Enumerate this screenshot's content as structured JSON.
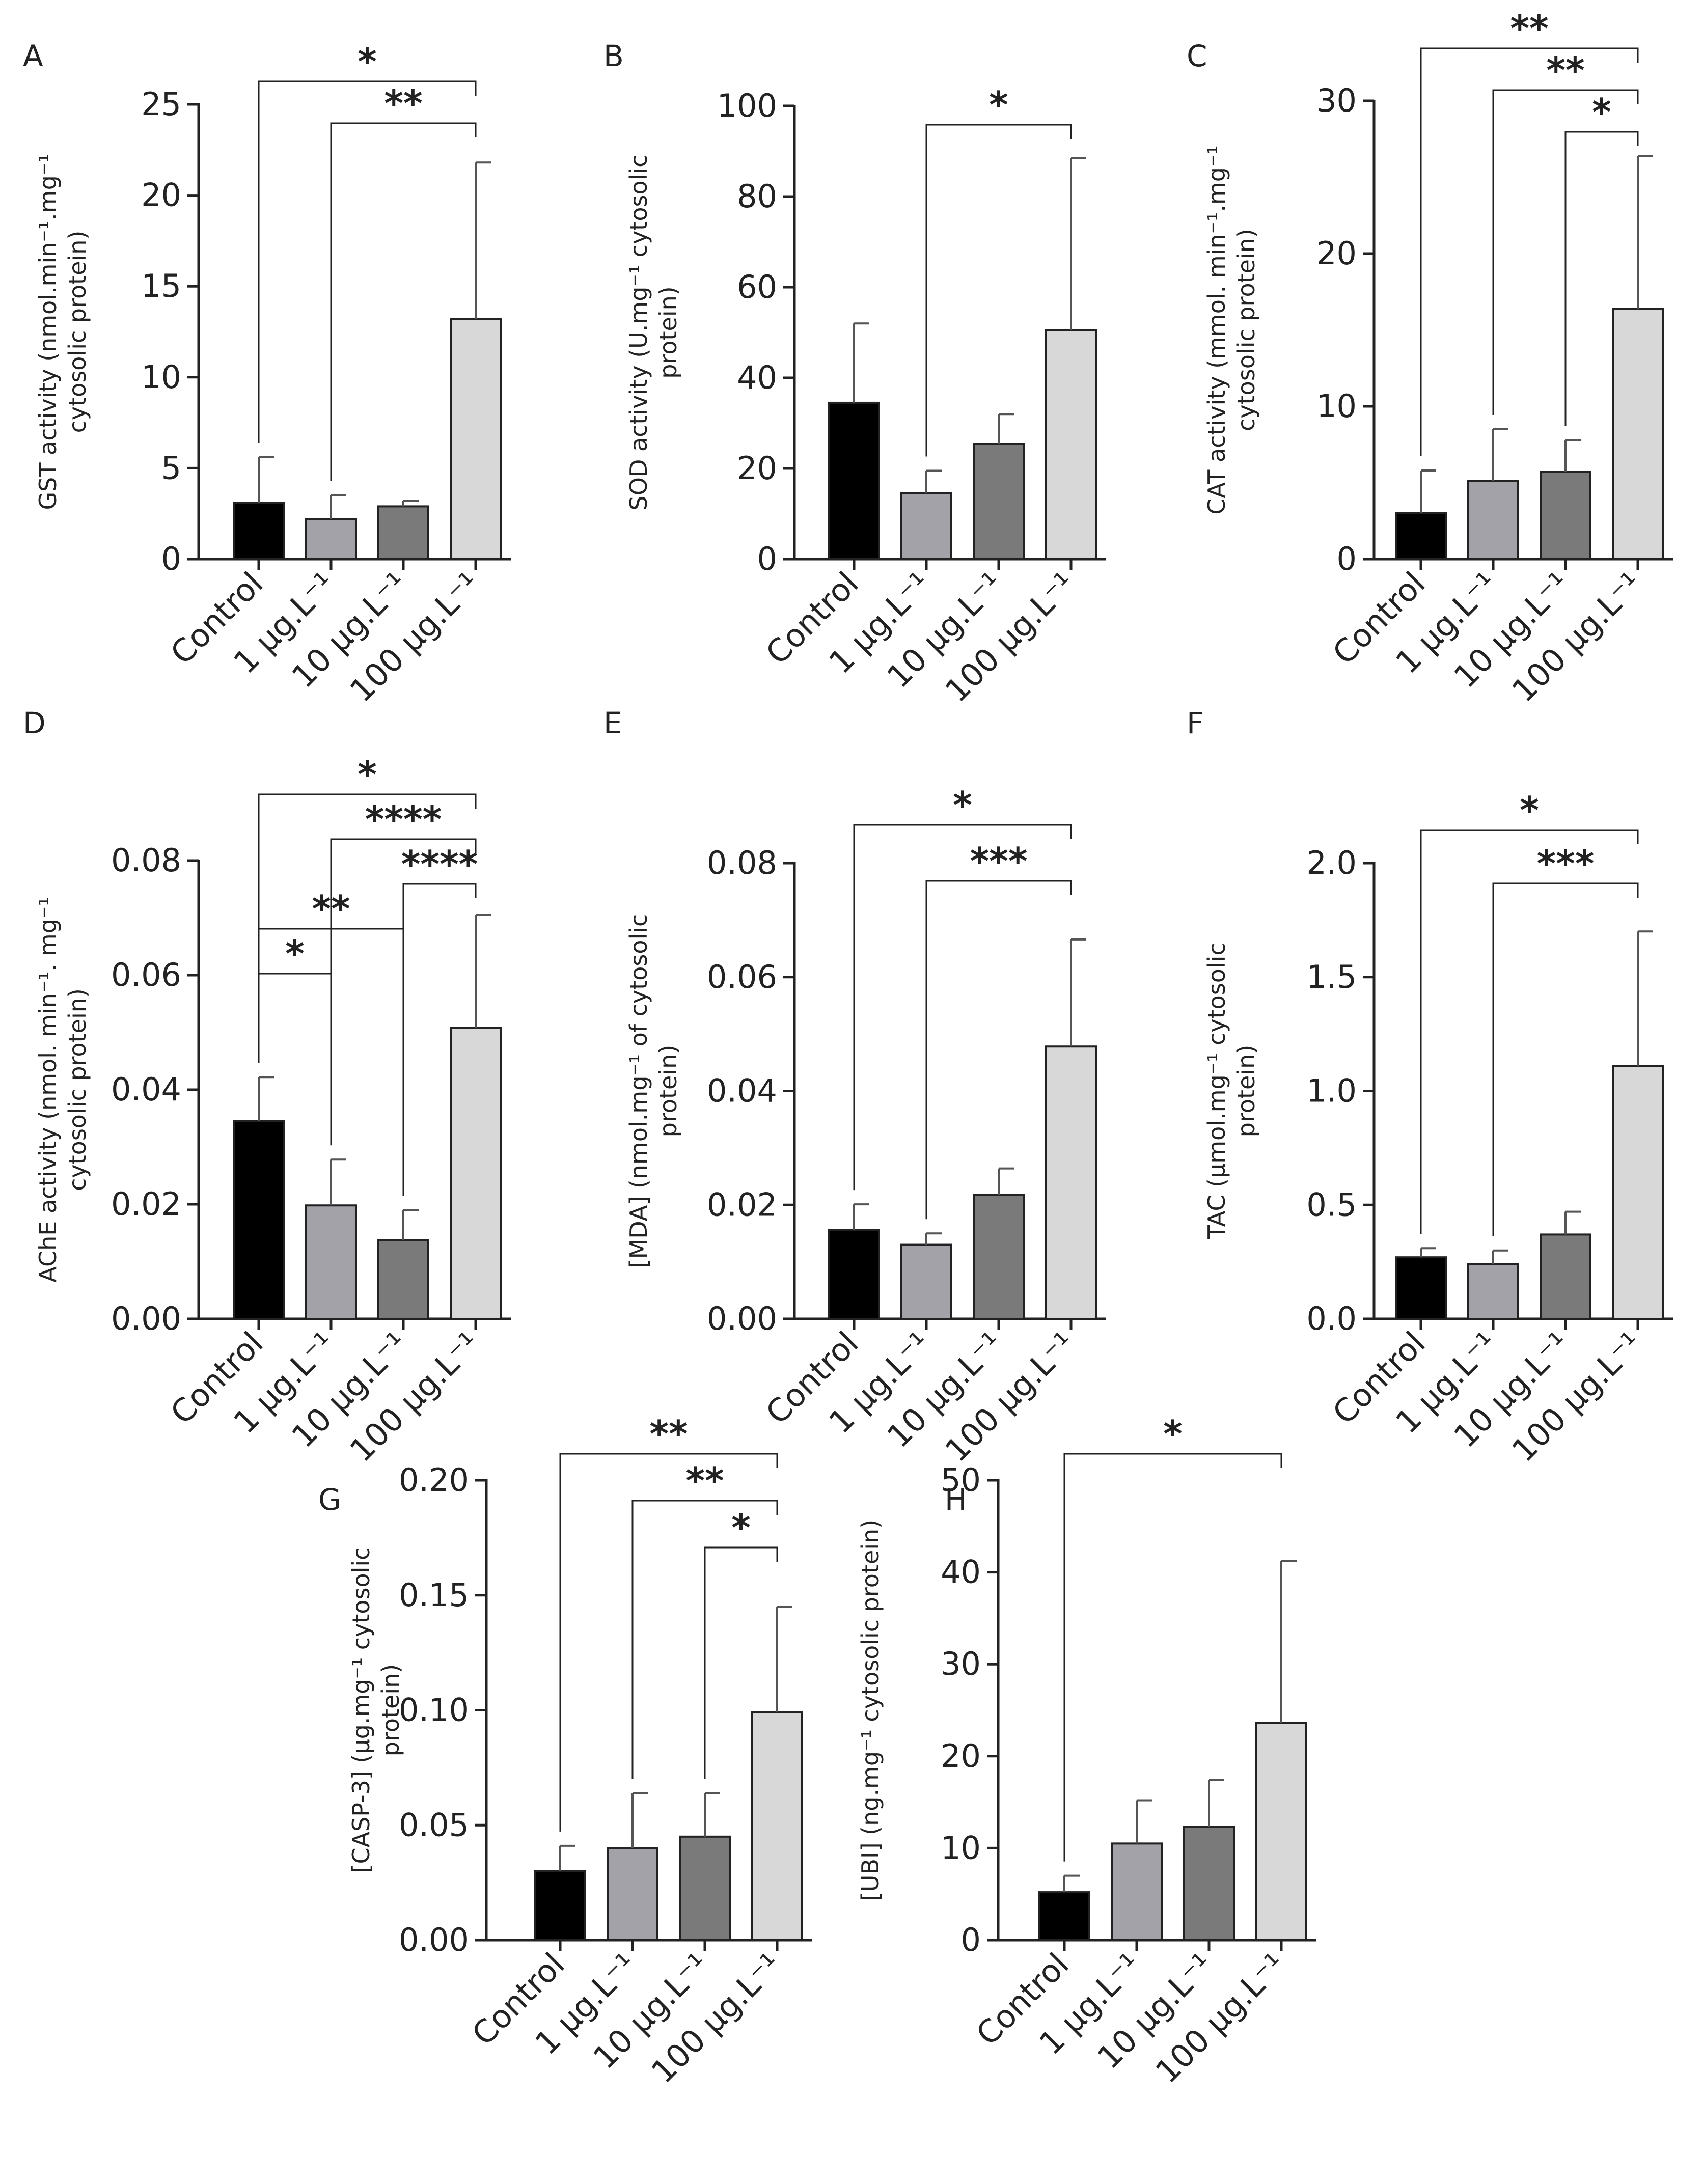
{
  "figure": {
    "colors": {
      "axis": "#222222",
      "bars": [
        "#000000",
        "#a2a2a8",
        "#7a7a7a",
        "#d8d8d8"
      ]
    }
  },
  "chart_data": [
    {
      "id": "A",
      "panel_label": "A",
      "type": "bar",
      "categories": [
        "Control",
        "1 µg.L⁻¹",
        "10 µg.L⁻¹",
        "100 µg.L⁻¹"
      ],
      "values": [
        3.1,
        2.2,
        2.9,
        13.2
      ],
      "errors": [
        2.5,
        1.3,
        0.3,
        8.6
      ],
      "ylabel_lines": [
        "GST activity (nmol.min⁻¹.mg⁻¹",
        "cytosolic protein)"
      ],
      "ylim": [
        0,
        25
      ],
      "yticks": [
        0,
        5,
        10,
        15,
        20,
        25
      ],
      "yticklabels": [
        "0",
        "5",
        "10",
        "15",
        "20",
        "25"
      ],
      "significance": [
        {
          "from": 0,
          "to": 3,
          "label": "*"
        },
        {
          "from": 1,
          "to": 3,
          "label": "**"
        }
      ]
    },
    {
      "id": "B",
      "panel_label": "B",
      "type": "bar",
      "categories": [
        "Control",
        "1 µg.L⁻¹",
        "10 µg.L⁻¹",
        "100 µg.L⁻¹"
      ],
      "values": [
        34.5,
        14.5,
        25.5,
        50.5
      ],
      "errors": [
        17.5,
        5.0,
        6.5,
        38.0
      ],
      "ylabel_lines": [
        "SOD activity (U.mg⁻¹ cytosolic",
        "protein)"
      ],
      "ylim": [
        0,
        100
      ],
      "yticks": [
        0,
        20,
        40,
        60,
        80,
        100
      ],
      "yticklabels": [
        "0",
        "20",
        "40",
        "60",
        "80",
        "100"
      ],
      "significance": [
        {
          "from": 1,
          "to": 3,
          "label": "*"
        }
      ]
    },
    {
      "id": "C",
      "panel_label": "C",
      "type": "bar",
      "categories": [
        "Control",
        "1 µg.L⁻¹",
        "10 µg.L⁻¹",
        "100 µg.L⁻¹"
      ],
      "values": [
        3.0,
        5.1,
        5.7,
        16.4
      ],
      "errors": [
        2.8,
        3.4,
        2.1,
        10.0
      ],
      "ylabel_lines": [
        "CAT activity (mmol. min⁻¹.mg⁻¹",
        "cytosolic protein)"
      ],
      "ylim": [
        0,
        30
      ],
      "yticks": [
        0,
        10,
        20,
        30
      ],
      "yticklabels": [
        "0",
        "10",
        "20",
        "30"
      ],
      "significance": [
        {
          "from": 0,
          "to": 3,
          "label": "**"
        },
        {
          "from": 1,
          "to": 3,
          "label": "**"
        },
        {
          "from": 2,
          "to": 3,
          "label": "*"
        }
      ]
    },
    {
      "id": "D",
      "panel_label": "D",
      "type": "bar",
      "categories": [
        "Control",
        "1 µg.L⁻¹",
        "10 µg.L⁻¹",
        "100 µg.L⁻¹"
      ],
      "values": [
        0.0345,
        0.0198,
        0.0137,
        0.0508
      ],
      "errors": [
        0.0077,
        0.008,
        0.0053,
        0.0197
      ],
      "ylabel_lines": [
        "AChE activity (nmol. min⁻¹. mg⁻¹",
        "cytosolic protein)"
      ],
      "ylim": [
        0,
        0.08
      ],
      "yticks": [
        0,
        0.02,
        0.04,
        0.06,
        0.08
      ],
      "yticklabels": [
        "0.00",
        "0.02",
        "0.04",
        "0.06",
        "0.08"
      ],
      "significance": [
        {
          "from": 0,
          "to": 3,
          "label": "*"
        },
        {
          "from": 1,
          "to": 3,
          "label": "****"
        },
        {
          "from": 2,
          "to": 3,
          "label": "****"
        },
        {
          "from": 0,
          "to": 2,
          "label": "**"
        },
        {
          "from": 0,
          "to": 1,
          "label": "*"
        }
      ]
    },
    {
      "id": "E",
      "panel_label": "E",
      "type": "bar",
      "categories": [
        "Control",
        "1 µg.L⁻¹",
        "10 µg.L⁻¹",
        "100 µg.L⁻¹"
      ],
      "values": [
        0.0156,
        0.013,
        0.0218,
        0.0478
      ],
      "errors": [
        0.0045,
        0.002,
        0.0046,
        0.0188
      ],
      "ylabel_lines": [
        "[MDA] (nmol.mg⁻¹ of cytosolic",
        "protein)"
      ],
      "ylim": [
        0,
        0.08
      ],
      "yticks": [
        0,
        0.02,
        0.04,
        0.06,
        0.08
      ],
      "yticklabels": [
        "0.00",
        "0.02",
        "0.04",
        "0.06",
        "0.08"
      ],
      "significance": [
        {
          "from": 0,
          "to": 3,
          "label": "*"
        },
        {
          "from": 1,
          "to": 3,
          "label": "***"
        }
      ]
    },
    {
      "id": "F",
      "panel_label": "F",
      "type": "bar",
      "categories": [
        "Control",
        "1 µg.L⁻¹",
        "10 µg.L⁻¹",
        "100 µg.L⁻¹"
      ],
      "values": [
        0.27,
        0.24,
        0.37,
        1.11
      ],
      "errors": [
        0.04,
        0.06,
        0.1,
        0.59
      ],
      "ylabel_lines": [
        "TAC (µmol.mg⁻¹ cytosolic",
        "protein)"
      ],
      "ylim": [
        0,
        2.0
      ],
      "yticks": [
        0,
        0.5,
        1.0,
        1.5,
        2.0
      ],
      "yticklabels": [
        "0.0",
        "0.5",
        "1.0",
        "1.5",
        "2.0"
      ],
      "significance": [
        {
          "from": 0,
          "to": 3,
          "label": "*"
        },
        {
          "from": 1,
          "to": 3,
          "label": "***"
        }
      ]
    },
    {
      "id": "G",
      "panel_label": "G",
      "type": "bar",
      "categories": [
        "Control",
        "1 µg.L⁻¹",
        "10 µg.L⁻¹",
        "100 µg.L⁻¹"
      ],
      "values": [
        0.03,
        0.04,
        0.045,
        0.099
      ],
      "errors": [
        0.011,
        0.024,
        0.019,
        0.046
      ],
      "ylabel_lines": [
        "[CASP-3] (µg.mg⁻¹ cytosolic",
        "protein)"
      ],
      "ylim": [
        0,
        0.2
      ],
      "yticks": [
        0,
        0.05,
        0.1,
        0.15,
        0.2
      ],
      "yticklabels": [
        "0.00",
        "0.05",
        "0.10",
        "0.15",
        "0.20"
      ],
      "significance": [
        {
          "from": 0,
          "to": 3,
          "label": "**"
        },
        {
          "from": 1,
          "to": 3,
          "label": "**"
        },
        {
          "from": 2,
          "to": 3,
          "label": "*"
        }
      ]
    },
    {
      "id": "H",
      "panel_label": "H",
      "type": "bar",
      "categories": [
        "Control",
        "1 µg.L⁻¹",
        "10 µg.L⁻¹",
        "100 µg.L⁻¹"
      ],
      "values": [
        5.2,
        10.5,
        12.3,
        23.6
      ],
      "errors": [
        1.8,
        4.7,
        5.1,
        17.6
      ],
      "ylabel_lines": [
        "[UBI] (ng.mg⁻¹ cytosolic protein)"
      ],
      "ylim": [
        0,
        50
      ],
      "yticks": [
        0,
        10,
        20,
        30,
        40,
        50
      ],
      "yticklabels": [
        "0",
        "10",
        "20",
        "30",
        "40",
        "50"
      ],
      "significance": [
        {
          "from": 0,
          "to": 3,
          "label": "*"
        }
      ]
    }
  ]
}
